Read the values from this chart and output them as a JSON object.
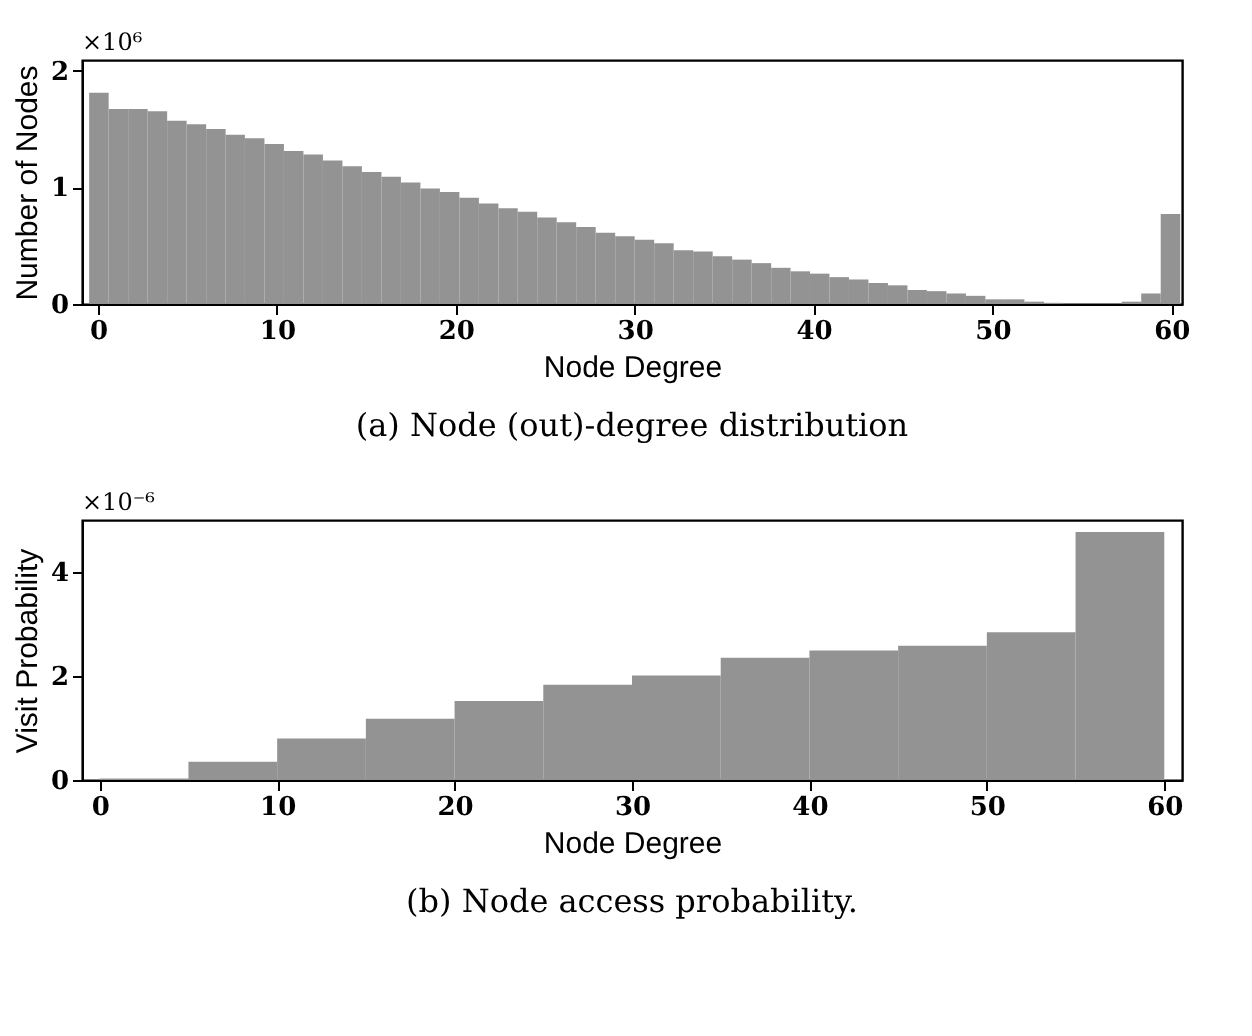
{
  "chart_data": [
    {
      "type": "histogram",
      "title": "(a) Node (out)-degree distribution",
      "xlabel": "Node Degree",
      "ylabel": "Number of Nodes",
      "annotations": [
        "×10⁶"
      ],
      "color": "#939393",
      "bins": [
        -0.5,
        0.59,
        1.68,
        2.77,
        3.86,
        4.95,
        6.04,
        7.13,
        8.21,
        9.3,
        10.39,
        11.48,
        12.57,
        13.66,
        14.75,
        15.84,
        16.93,
        18.02,
        19.11,
        20.2,
        21.29,
        22.38,
        23.46,
        24.55,
        25.64,
        26.73,
        27.82,
        28.91,
        30.0,
        31.09,
        32.18,
        33.27,
        34.36,
        35.45,
        36.54,
        37.63,
        38.71,
        39.8,
        40.89,
        41.98,
        43.07,
        44.16,
        45.25,
        46.34,
        47.43,
        48.52,
        49.61,
        50.7,
        51.79,
        52.88,
        53.96,
        55.05,
        56.14,
        57.23,
        58.32,
        59.41,
        60.5
      ],
      "values": [
        1.81,
        1.67,
        1.67,
        1.65,
        1.57,
        1.54,
        1.5,
        1.45,
        1.42,
        1.37,
        1.31,
        1.28,
        1.23,
        1.18,
        1.13,
        1.09,
        1.04,
        0.99,
        0.96,
        0.91,
        0.86,
        0.82,
        0.79,
        0.74,
        0.7,
        0.66,
        0.61,
        0.58,
        0.55,
        0.52,
        0.46,
        0.45,
        0.41,
        0.38,
        0.35,
        0.31,
        0.28,
        0.26,
        0.23,
        0.21,
        0.18,
        0.16,
        0.12,
        0.11,
        0.09,
        0.07,
        0.04,
        0.04,
        0.02,
        0.01,
        0,
        0,
        0,
        0.02,
        0.09,
        0.77
      ],
      "xlim": [
        -0.9,
        60.6
      ],
      "xticks": [
        0,
        10,
        20,
        30,
        40,
        50,
        60
      ],
      "ylim": [
        0,
        2.09
      ],
      "yticks": [
        0,
        1,
        2
      ],
      "grid": false
    },
    {
      "type": "histogram",
      "title": "(b) Node access probability.",
      "xlabel": "Node Degree",
      "ylabel": "Visit Probability",
      "annotations": [
        "×10⁻⁶"
      ],
      "color": "#939393",
      "bins": [
        0,
        5,
        10,
        15,
        20,
        25,
        30,
        35,
        40,
        45,
        50,
        55,
        60
      ],
      "values": [
        0.03,
        0.35,
        0.8,
        1.18,
        1.52,
        1.83,
        2.01,
        2.35,
        2.49,
        2.58,
        2.84,
        4.77
      ],
      "xlim": [
        -1,
        61
      ],
      "xticks": [
        0,
        10,
        20,
        30,
        40,
        50,
        60
      ],
      "ylim": [
        0,
        5
      ],
      "yticks": [
        0,
        2,
        4
      ],
      "grid": false
    }
  ]
}
